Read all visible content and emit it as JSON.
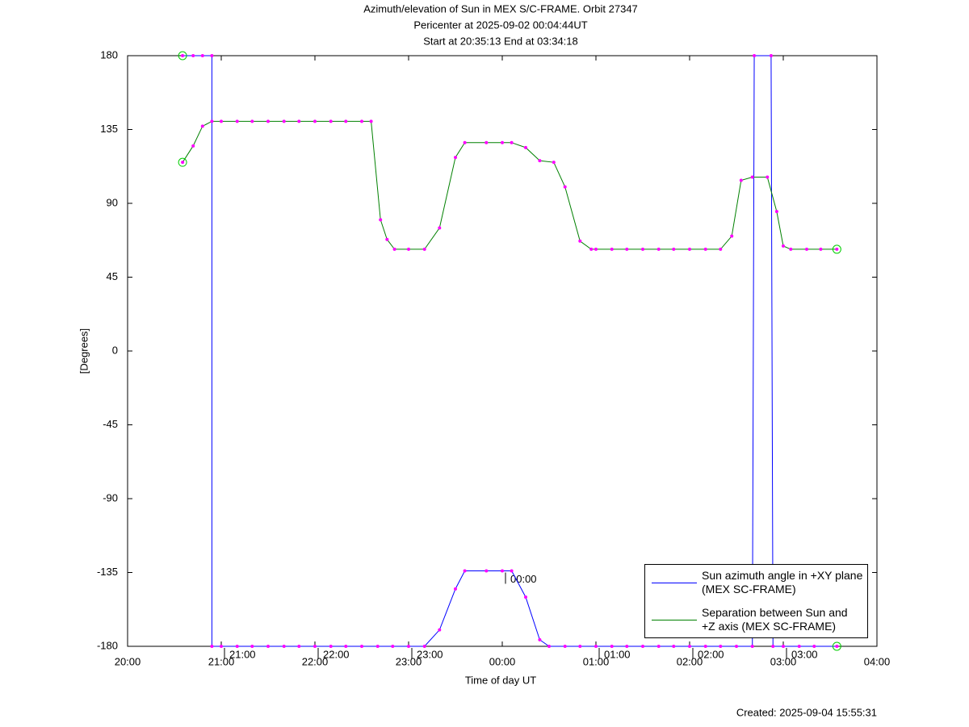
{
  "chart_data": {
    "type": "line",
    "title": "Azimuth/elevation of Sun in MEX S/C-FRAME.  Orbit 27347",
    "subtitle": [
      "Pericenter at 2025-09-02 00:04:44UT",
      "Start at 20:35:13 End at 03:34:18"
    ],
    "x_label": "Time of day UT",
    "y_label": "[Degrees]",
    "footer": "Created: 2025-09-04 15:55:31",
    "xlim": [
      20,
      28
    ],
    "ylim": [
      -180,
      180
    ],
    "xticks": [
      {
        "value": 20,
        "label": "20:00"
      },
      {
        "value": 21,
        "label": "21:00"
      },
      {
        "value": 22,
        "label": "22:00"
      },
      {
        "value": 23,
        "label": "23:00"
      },
      {
        "value": 24,
        "label": "00:00"
      },
      {
        "value": 25,
        "label": "01:00"
      },
      {
        "value": 26,
        "label": "02:00"
      },
      {
        "value": 27,
        "label": "03:00"
      },
      {
        "value": 28,
        "label": "04:00"
      }
    ],
    "yticks": [
      180,
      135,
      90,
      45,
      0,
      -45,
      -90,
      -135,
      -180
    ],
    "annotations": [
      {
        "label": "21:00",
        "x": 21,
        "y": -180
      },
      {
        "label": "22:00",
        "x": 22,
        "y": -180
      },
      {
        "label": "23:00",
        "x": 23,
        "y": -180
      },
      {
        "label": "00:00",
        "x": 24,
        "y": -134
      },
      {
        "label": "01:00",
        "x": 25,
        "y": -180
      },
      {
        "label": "02:00",
        "x": 26,
        "y": -180
      },
      {
        "label": "03:00",
        "x": 27,
        "y": -180
      }
    ],
    "series": [
      {
        "name": "Sun azimuth angle in +XY plane (MEX SC-FRAME)",
        "color": "#0000ff",
        "x": [
          20.587,
          20.7,
          20.8,
          20.9,
          20.9,
          21.0,
          21.17,
          21.33,
          21.5,
          21.67,
          21.83,
          22.0,
          22.17,
          22.33,
          22.5,
          22.67,
          22.83,
          23.0,
          23.17,
          23.33,
          23.5,
          23.6,
          23.83,
          24.0,
          24.1,
          24.25,
          24.4,
          24.5,
          24.67,
          24.83,
          25.0,
          25.17,
          25.33,
          25.5,
          25.67,
          25.83,
          26.0,
          26.17,
          26.33,
          26.5,
          26.67,
          26.69,
          26.87,
          26.89,
          27.0,
          27.17,
          27.33,
          27.572
        ],
        "values": [
          180,
          180,
          180,
          180,
          -180,
          -180,
          -180,
          -180,
          -180,
          -180,
          -180,
          -180,
          -180,
          -180,
          -180,
          -180,
          -180,
          -180,
          -180,
          -170,
          -145,
          -134,
          -134,
          -134,
          -134,
          -150,
          -176,
          -180,
          -180,
          -180,
          -180,
          -180,
          -180,
          -180,
          -180,
          -180,
          -180,
          -180,
          -180,
          -180,
          -180,
          180,
          180,
          -180,
          -180,
          -180,
          -180,
          -180
        ]
      },
      {
        "name": "Separation between Sun and +Z axis (MEX SC-FRAME)",
        "color": "#008000",
        "x": [
          20.587,
          20.7,
          20.8,
          20.9,
          21.0,
          21.17,
          21.33,
          21.5,
          21.67,
          21.83,
          22.0,
          22.17,
          22.33,
          22.5,
          22.6,
          22.7,
          22.77,
          22.85,
          23.0,
          23.17,
          23.33,
          23.5,
          23.6,
          23.83,
          24.0,
          24.1,
          24.25,
          24.4,
          24.55,
          24.67,
          24.83,
          24.95,
          25.0,
          25.17,
          25.33,
          25.5,
          25.67,
          25.83,
          26.0,
          26.17,
          26.33,
          26.45,
          26.55,
          26.67,
          26.83,
          26.93,
          27.0,
          27.08,
          27.25,
          27.4,
          27.572
        ],
        "values": [
          115,
          125,
          137,
          140,
          140,
          140,
          140,
          140,
          140,
          140,
          140,
          140,
          140,
          140,
          140,
          80,
          68,
          62,
          62,
          62,
          75,
          118,
          127,
          127,
          127,
          127,
          124,
          116,
          115,
          100,
          67,
          62,
          62,
          62,
          62,
          62,
          62,
          62,
          62,
          62,
          62,
          70,
          104,
          106,
          106,
          85,
          64,
          62,
          62,
          62,
          62
        ]
      }
    ]
  }
}
